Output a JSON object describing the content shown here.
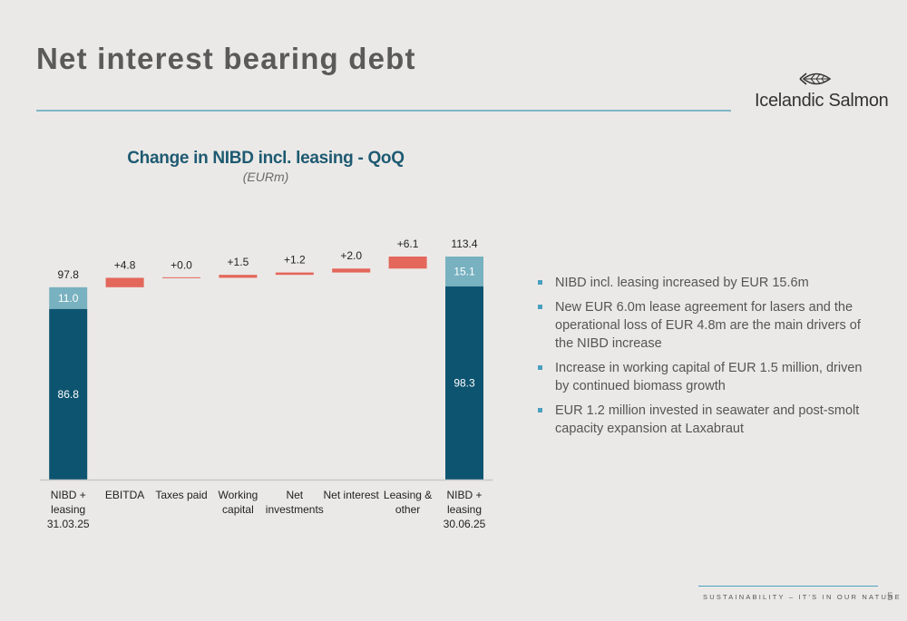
{
  "page": {
    "title": "Net interest bearing debt",
    "logo_text": "Icelandic Salmon",
    "footer_text": "SUSTAINABILITY – IT'S IN OUR NATURE",
    "page_number": "5"
  },
  "bullets": [
    "NIBD incl. leasing increased by EUR 15.6m",
    "New EUR 6.0m lease agreement for lasers and the operational loss of EUR 4.8m are the main drivers of the NIBD increase",
    "Increase in working capital of EUR 1.5 million, driven by continued biomass growth",
    "EUR 1.2 million invested in seawater and post-smolt capacity expansion at Laxabraut"
  ],
  "colors": {
    "nibd_dark": "#0d5470",
    "leasing_light": "#78b1c0",
    "increase": "#e3675b",
    "title_blue": "#1e5a72",
    "accent_rule": "#7fb5c4"
  },
  "chart_data": {
    "type": "bar",
    "subtype": "waterfall",
    "title": "Change in NIBD incl. leasing - QoQ",
    "subtitle": "(EURm)",
    "categories": [
      "NIBD + leasing 31.03.25",
      "EBITDA",
      "Taxes paid",
      "Working capital",
      "Net investments",
      "Net interest",
      "Leasing & other",
      "NIBD + leasing 30.06.25"
    ],
    "category_lines": [
      [
        "NIBD +",
        "leasing",
        "31.03.25"
      ],
      [
        "EBITDA"
      ],
      [
        "Taxes paid"
      ],
      [
        "Working",
        "capital"
      ],
      [
        "Net",
        "investments"
      ],
      [
        "Net interest"
      ],
      [
        "Leasing &",
        "other"
      ],
      [
        "NIBD +",
        "leasing",
        "30.06.25"
      ]
    ],
    "totals": [
      {
        "category": "NIBD + leasing 31.03.25",
        "total": 97.8,
        "total_label": "97.8",
        "segments": [
          {
            "name": "NIBD",
            "value": 86.8,
            "label": "86.8"
          },
          {
            "name": "Leasing",
            "value": 11.0,
            "label": "11.0"
          }
        ]
      },
      {
        "category": "NIBD + leasing 30.06.25",
        "total": 113.4,
        "total_label": "113.4",
        "segments": [
          {
            "name": "NIBD",
            "value": 98.3,
            "label": "98.3"
          },
          {
            "name": "Leasing",
            "value": 15.1,
            "label": "15.1"
          }
        ]
      }
    ],
    "changes": [
      {
        "category": "EBITDA",
        "value": 4.8,
        "label": "+4.8"
      },
      {
        "category": "Taxes paid",
        "value": 0.0,
        "label": "+0.0"
      },
      {
        "category": "Working capital",
        "value": 1.5,
        "label": "+1.5"
      },
      {
        "category": "Net investments",
        "value": 1.2,
        "label": "+1.2"
      },
      {
        "category": "Net interest",
        "value": 2.0,
        "label": "+2.0"
      },
      {
        "category": "Leasing & other",
        "value": 6.1,
        "label": "+6.1"
      }
    ],
    "ylim": [
      0,
      113.4
    ],
    "grid": false,
    "legend": "none"
  }
}
